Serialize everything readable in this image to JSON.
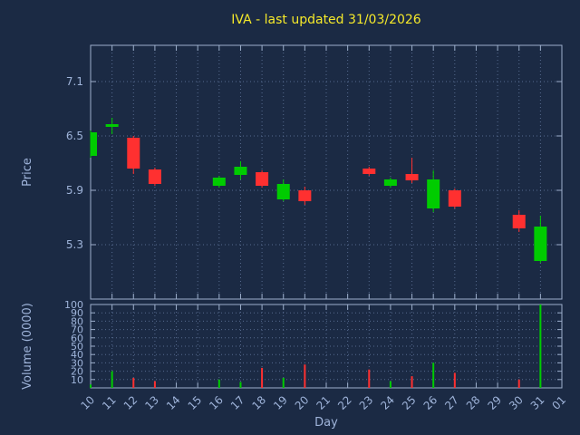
{
  "colors": {
    "background": "#1b2a44",
    "title": "#f5e92a",
    "axis_text": "#9fb4da",
    "border": "#9caecb",
    "grid": "#566a8e",
    "up": "#00cc00",
    "down": "#ff3030"
  },
  "chart_data": {
    "type": "candlestick",
    "title": "IVA - last updated 31/03/2026",
    "xlabel": "Day",
    "price_axis": {
      "label": "Price",
      "ticks": [
        5.3,
        5.9,
        6.5,
        7.1
      ],
      "range": [
        4.7,
        7.5
      ]
    },
    "volume_axis": {
      "label": "Volume (0000)",
      "ticks": [
        10,
        20,
        30,
        40,
        50,
        60,
        70,
        80,
        90,
        100
      ],
      "range": [
        0,
        100
      ]
    },
    "x_ticks": [
      "10",
      "11",
      "12",
      "13",
      "14",
      "15",
      "16",
      "17",
      "18",
      "19",
      "20",
      "21",
      "22",
      "23",
      "24",
      "25",
      "26",
      "27",
      "28",
      "29",
      "30",
      "31",
      "01"
    ],
    "candles": [
      {
        "day": "10",
        "open": 6.28,
        "high": 6.56,
        "low": 6.26,
        "close": 6.54,
        "volume": 4
      },
      {
        "day": "11",
        "open": 6.6,
        "high": 6.7,
        "low": 6.52,
        "close": 6.63,
        "volume": 20
      },
      {
        "day": "12",
        "open": 6.48,
        "high": 6.5,
        "low": 6.08,
        "close": 6.14,
        "volume": 12
      },
      {
        "day": "13",
        "open": 6.13,
        "high": 6.15,
        "low": 5.95,
        "close": 5.97,
        "volume": 8
      },
      {
        "day": "16",
        "open": 5.95,
        "high": 6.06,
        "low": 5.93,
        "close": 6.04,
        "volume": 10
      },
      {
        "day": "17",
        "open": 6.07,
        "high": 6.22,
        "low": 6.02,
        "close": 6.16,
        "volume": 7
      },
      {
        "day": "18",
        "open": 6.1,
        "high": 6.12,
        "low": 5.93,
        "close": 5.95,
        "volume": 24
      },
      {
        "day": "19",
        "open": 5.8,
        "high": 6.02,
        "low": 5.78,
        "close": 5.97,
        "volume": 12
      },
      {
        "day": "20",
        "open": 5.9,
        "high": 5.94,
        "low": 5.74,
        "close": 5.78,
        "volume": 28
      },
      {
        "day": "23",
        "open": 6.14,
        "high": 6.16,
        "low": 6.06,
        "close": 6.08,
        "volume": 22
      },
      {
        "day": "24",
        "open": 5.95,
        "high": 6.04,
        "low": 5.93,
        "close": 6.02,
        "volume": 8
      },
      {
        "day": "25",
        "open": 6.08,
        "high": 6.26,
        "low": 5.98,
        "close": 6.01,
        "volume": 14
      },
      {
        "day": "26",
        "open": 5.7,
        "high": 6.12,
        "low": 5.66,
        "close": 6.02,
        "volume": 30
      },
      {
        "day": "27",
        "open": 5.9,
        "high": 5.92,
        "low": 5.7,
        "close": 5.72,
        "volume": 18
      },
      {
        "day": "30",
        "open": 5.63,
        "high": 5.68,
        "low": 5.44,
        "close": 5.48,
        "volume": 10
      },
      {
        "day": "31",
        "open": 5.12,
        "high": 5.62,
        "low": 5.1,
        "close": 5.5,
        "volume": 100
      }
    ]
  }
}
